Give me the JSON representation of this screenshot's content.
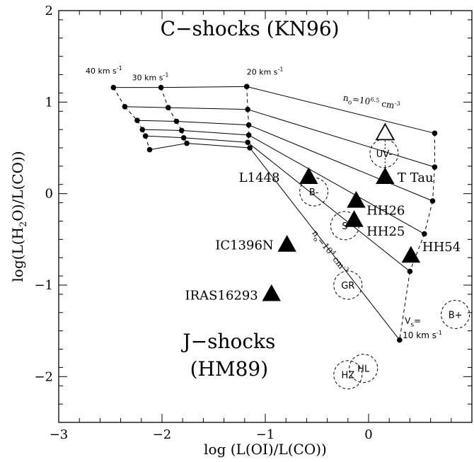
{
  "chart_data": {
    "type": "scatter",
    "title": "",
    "xlabel_main": "log (L(OI)/L(CO))",
    "ylabel_parts": {
      "pre": "log(L(H",
      "sub": "2",
      "post": "O)/L(CO))"
    },
    "xlim": [
      -3,
      1
    ],
    "ylim": [
      -2.5,
      2
    ],
    "xticks": [
      -3,
      -2,
      -1,
      0
    ],
    "xtick_labels": [
      "−3",
      "−2",
      "−1",
      "0"
    ],
    "yticks": [
      -2,
      -1,
      0,
      1,
      2
    ],
    "ytick_labels": [
      "−2",
      "−1",
      "0",
      "1",
      "2"
    ],
    "grid": false,
    "region_labels": [
      {
        "id": "c-shocks",
        "text": "C−shocks (KN96)",
        "x": -1.15,
        "y": 1.73
      },
      {
        "id": "j-shocks-1",
        "text": "J−shocks",
        "x": -1.35,
        "y": -1.69
      },
      {
        "id": "j-shocks-2",
        "text": "(HM89)",
        "x": -1.35,
        "y": -1.99
      }
    ],
    "model_points": [
      [
        [
          -2.47,
          1.16
        ],
        [
          -2.01,
          1.16
        ],
        [
          -1.18,
          1.17
        ],
        [
          0.64,
          0.66
        ]
      ],
      [
        [
          -2.36,
          0.95
        ],
        [
          -1.94,
          0.94
        ],
        [
          -1.17,
          0.92
        ],
        [
          0.64,
          0.29
        ]
      ],
      [
        [
          -2.24,
          0.8
        ],
        [
          -1.86,
          0.79
        ],
        [
          -1.16,
          0.75
        ],
        [
          0.62,
          -0.08
        ]
      ],
      [
        [
          -2.19,
          0.7
        ],
        [
          -1.81,
          0.69
        ],
        [
          -1.16,
          0.64
        ],
        [
          0.54,
          -0.44
        ]
      ],
      [
        [
          -2.16,
          0.63
        ],
        [
          -1.79,
          0.61
        ],
        [
          -1.17,
          0.56
        ],
        [
          0.4,
          -0.85
        ]
      ],
      [
        [
          -2.12,
          0.48
        ],
        [
          -1.76,
          0.55
        ],
        [
          -1.15,
          0.5
        ],
        [
          0.3,
          -1.6
        ]
      ]
    ],
    "velocity_labels": [
      {
        "text": "40 km s",
        "sup": "-1",
        "x": -2.74,
        "y": 1.31
      },
      {
        "text": "30 km s",
        "sup": "-1",
        "x": -2.29,
        "y": 1.24
      },
      {
        "text": "20 km s",
        "sup": "-1",
        "x": -1.18,
        "y": 1.3
      }
    ],
    "density_labels": [
      {
        "text": "n",
        "sub": "o",
        "mid": "=10",
        "sup": "6.5",
        "post": " cm",
        "sup2": "-3",
        "x": -0.25,
        "y": 1.02,
        "angle": 9
      },
      {
        "text": "n",
        "sub": "o",
        "mid": "=10",
        "sup": "4",
        "post": " cm",
        "sup2": "-3",
        "x": -0.55,
        "y": -0.43,
        "angle": 52
      }
    ],
    "vs_label": {
      "line1": "V",
      "sub": "s",
      "eq": "=",
      "line2": "10 km s",
      "sup": "-1"
    },
    "observed": [
      {
        "name": "L1448",
        "x": -0.58,
        "y": 0.18,
        "label_x": -0.86,
        "label_y": 0.13
      },
      {
        "name": "T Tau",
        "x": 0.16,
        "y": 0.18,
        "label_x": 0.28,
        "label_y": 0.13
      },
      {
        "name": "HH26",
        "x": -0.12,
        "y": -0.08,
        "label_x": -0.02,
        "label_y": -0.23
      },
      {
        "name": "HH25",
        "x": -0.14,
        "y": -0.29,
        "label_x": -0.02,
        "label_y": -0.46
      },
      {
        "name": "HH54",
        "x": 0.41,
        "y": -0.68,
        "label_x": 0.52,
        "label_y": -0.63
      },
      {
        "name": "IC1396N",
        "x": -0.79,
        "y": -0.56,
        "label_x": -0.92,
        "label_y": -0.61
      },
      {
        "name": "IRAS16293",
        "x": -0.94,
        "y": -1.1,
        "label_x": -1.07,
        "label_y": -1.16
      }
    ],
    "open_triangle": {
      "x": 0.16,
      "y": 0.66
    },
    "dotted_arrow": {
      "x": 0.16,
      "y1": 0.62,
      "y2": 0.26
    },
    "circles": [
      {
        "label": "UV-",
        "x": 0.15,
        "y": 0.44
      },
      {
        "label": "B-",
        "x": -0.53,
        "y": 0.02
      },
      {
        "label": "S",
        "x": -0.23,
        "y": -0.35
      },
      {
        "label": "GR",
        "x": -0.2,
        "y": -1.0
      },
      {
        "label": "B+",
        "x": 0.84,
        "y": -1.32
      },
      {
        "label": "HZ",
        "x": -0.2,
        "y": -1.98
      },
      {
        "label": "HL",
        "x": -0.05,
        "y": -1.91
      }
    ]
  }
}
